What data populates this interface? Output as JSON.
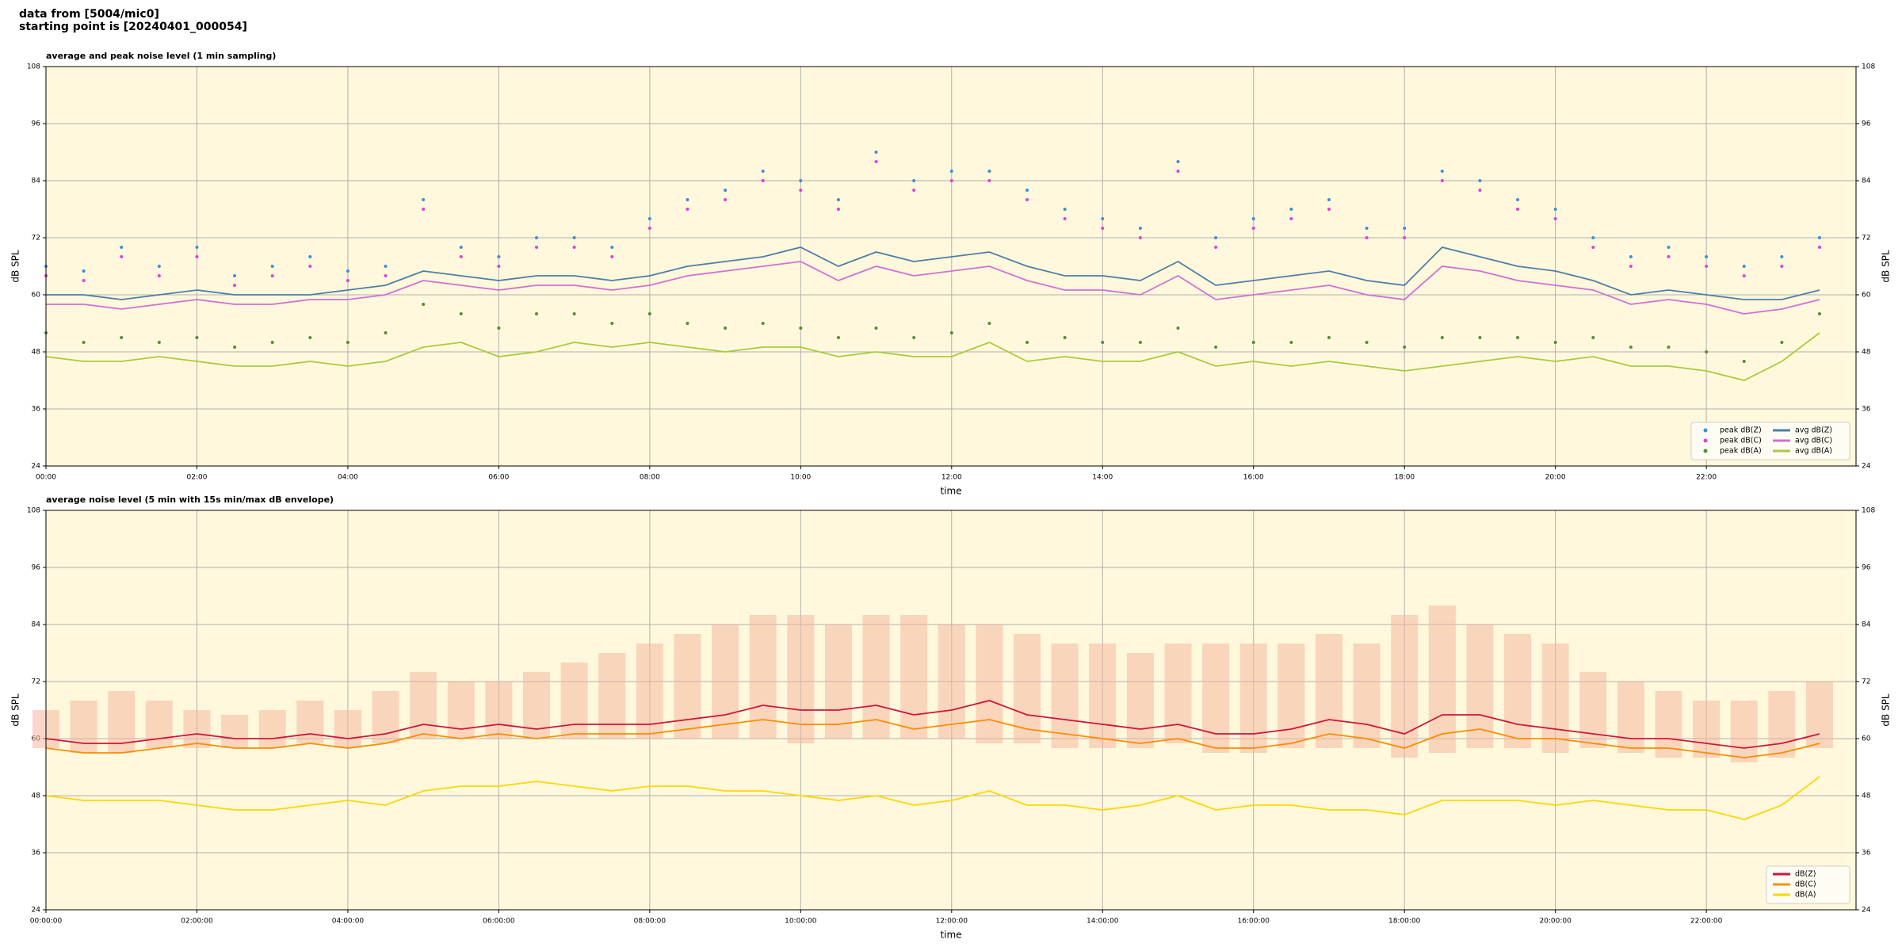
{
  "page": {
    "header": [
      "data from [5004/mic0]",
      "starting point is [20240401_000054]"
    ]
  },
  "chart_data": [
    {
      "type": "line",
      "title": "average and peak noise level (1 min sampling)",
      "xlabel": "time",
      "ylabel": "dB SPL",
      "x": [
        "00:00",
        "00:30",
        "01:00",
        "01:30",
        "02:00",
        "02:30",
        "03:00",
        "03:30",
        "04:00",
        "04:30",
        "05:00",
        "05:30",
        "06:00",
        "06:30",
        "07:00",
        "07:30",
        "08:00",
        "08:30",
        "09:00",
        "09:30",
        "10:00",
        "10:30",
        "11:00",
        "11:30",
        "12:00",
        "12:30",
        "13:00",
        "13:30",
        "14:00",
        "14:30",
        "15:00",
        "15:30",
        "16:00",
        "16:30",
        "17:00",
        "17:30",
        "18:00",
        "18:30",
        "19:00",
        "19:30",
        "20:00",
        "20:30",
        "21:00",
        "21:30",
        "22:00",
        "22:30",
        "23:00",
        "23:30"
      ],
      "xlim": [
        "00:00",
        "23:59"
      ],
      "xticks": [
        "00:00",
        "02:00",
        "04:00",
        "06:00",
        "08:00",
        "10:00",
        "12:00",
        "14:00",
        "16:00",
        "18:00",
        "20:00",
        "22:00"
      ],
      "ylim": [
        24,
        108
      ],
      "yticks": [
        24,
        36,
        48,
        60,
        72,
        84,
        96,
        108
      ],
      "grid": true,
      "legend": "lower right",
      "series": [
        {
          "name": "peak dB(Z)",
          "type": "scatter",
          "color": "#3b8fd6",
          "values": [
            66,
            65,
            70,
            66,
            70,
            64,
            66,
            68,
            65,
            66,
            80,
            70,
            68,
            72,
            72,
            70,
            76,
            80,
            82,
            86,
            84,
            80,
            90,
            84,
            86,
            86,
            82,
            78,
            76,
            74,
            88,
            72,
            76,
            78,
            80,
            74,
            74,
            86,
            84,
            80,
            78,
            72,
            68,
            70,
            68,
            66,
            68,
            72
          ]
        },
        {
          "name": "peak dB(C)",
          "type": "scatter",
          "color": "#e040d8",
          "values": [
            64,
            63,
            68,
            64,
            68,
            62,
            64,
            66,
            63,
            64,
            78,
            68,
            66,
            70,
            70,
            68,
            74,
            78,
            80,
            84,
            82,
            78,
            88,
            82,
            84,
            84,
            80,
            76,
            74,
            72,
            86,
            70,
            74,
            76,
            78,
            72,
            72,
            84,
            82,
            78,
            76,
            70,
            66,
            68,
            66,
            64,
            66,
            70
          ]
        },
        {
          "name": "peak dB(A)",
          "type": "scatter",
          "color": "#4f8f3a",
          "values": [
            52,
            50,
            51,
            50,
            51,
            49,
            50,
            51,
            50,
            52,
            58,
            56,
            53,
            56,
            56,
            54,
            56,
            54,
            53,
            54,
            53,
            51,
            53,
            51,
            52,
            54,
            50,
            51,
            50,
            50,
            53,
            49,
            50,
            50,
            51,
            50,
            49,
            51,
            51,
            51,
            50,
            51,
            49,
            49,
            48,
            46,
            50,
            56
          ]
        },
        {
          "name": "avg dB(Z)",
          "type": "line",
          "color": "#4d7ea8",
          "values": [
            60,
            60,
            59,
            60,
            61,
            60,
            60,
            60,
            61,
            62,
            65,
            64,
            63,
            64,
            64,
            63,
            64,
            66,
            67,
            68,
            70,
            66,
            69,
            67,
            68,
            69,
            66,
            64,
            64,
            63,
            67,
            62,
            63,
            64,
            65,
            63,
            62,
            70,
            68,
            66,
            65,
            63,
            60,
            61,
            60,
            59,
            59,
            61
          ]
        },
        {
          "name": "avg dB(C)",
          "type": "line",
          "color": "#d070d6",
          "values": [
            58,
            58,
            57,
            58,
            59,
            58,
            58,
            59,
            59,
            60,
            63,
            62,
            61,
            62,
            62,
            61,
            62,
            64,
            65,
            66,
            67,
            63,
            66,
            64,
            65,
            66,
            63,
            61,
            61,
            60,
            64,
            59,
            60,
            61,
            62,
            60,
            59,
            66,
            65,
            63,
            62,
            61,
            58,
            59,
            58,
            56,
            57,
            59
          ]
        },
        {
          "name": "avg dB(A)",
          "type": "line",
          "color": "#a8cc3c",
          "values": [
            47,
            46,
            46,
            47,
            46,
            45,
            45,
            46,
            45,
            46,
            49,
            50,
            47,
            48,
            50,
            49,
            50,
            49,
            48,
            49,
            49,
            47,
            48,
            47,
            47,
            50,
            46,
            47,
            46,
            46,
            48,
            45,
            46,
            45,
            46,
            45,
            44,
            45,
            46,
            47,
            46,
            47,
            45,
            45,
            44,
            42,
            46,
            52
          ]
        }
      ]
    },
    {
      "type": "line",
      "title": "average noise level (5 min with 15s min/max dB envelope)",
      "xlabel": "time",
      "ylabel": "dB SPL",
      "x": [
        "00:00:00",
        "00:30:00",
        "01:00:00",
        "01:30:00",
        "02:00:00",
        "02:30:00",
        "03:00:00",
        "03:30:00",
        "04:00:00",
        "04:30:00",
        "05:00:00",
        "05:30:00",
        "06:00:00",
        "06:30:00",
        "07:00:00",
        "07:30:00",
        "08:00:00",
        "08:30:00",
        "09:00:00",
        "09:30:00",
        "10:00:00",
        "10:30:00",
        "11:00:00",
        "11:30:00",
        "12:00:00",
        "12:30:00",
        "13:00:00",
        "13:30:00",
        "14:00:00",
        "14:30:00",
        "15:00:00",
        "15:30:00",
        "16:00:00",
        "16:30:00",
        "17:00:00",
        "17:30:00",
        "18:00:00",
        "18:30:00",
        "19:00:00",
        "19:30:00",
        "20:00:00",
        "20:30:00",
        "21:00:00",
        "21:30:00",
        "22:00:00",
        "22:30:00",
        "23:00:00",
        "23:30:00"
      ],
      "xlim": [
        "00:00:00",
        "23:59:00"
      ],
      "xticks": [
        "00:00:00",
        "02:00:00",
        "04:00:00",
        "06:00:00",
        "08:00:00",
        "10:00:00",
        "12:00:00",
        "14:00:00",
        "16:00:00",
        "18:00:00",
        "20:00:00",
        "22:00:00"
      ],
      "ylim": [
        24,
        108
      ],
      "yticks": [
        24,
        36,
        48,
        60,
        72,
        84,
        96,
        108
      ],
      "grid": true,
      "legend": "lower right",
      "envelope": {
        "color": "#f4b8a0",
        "min": [
          58,
          57,
          57,
          58,
          58,
          58,
          58,
          59,
          58,
          59,
          60,
          60,
          60,
          60,
          60,
          60,
          60,
          60,
          60,
          60,
          59,
          60,
          60,
          60,
          60,
          59,
          59,
          58,
          58,
          58,
          59,
          57,
          57,
          58,
          58,
          58,
          56,
          57,
          58,
          58,
          57,
          58,
          57,
          56,
          56,
          55,
          56,
          58
        ],
        "max": [
          66,
          68,
          70,
          68,
          66,
          65,
          66,
          68,
          66,
          70,
          74,
          72,
          72,
          74,
          76,
          78,
          80,
          82,
          84,
          86,
          86,
          84,
          86,
          86,
          84,
          84,
          82,
          80,
          80,
          78,
          80,
          80,
          80,
          80,
          82,
          80,
          86,
          88,
          84,
          82,
          80,
          74,
          72,
          70,
          68,
          68,
          70,
          72
        ]
      },
      "series": [
        {
          "name": "dB(Z)",
          "type": "line",
          "color": "#d0143c",
          "values": [
            60,
            59,
            59,
            60,
            61,
            60,
            60,
            61,
            60,
            61,
            63,
            62,
            63,
            62,
            63,
            63,
            63,
            64,
            65,
            67,
            66,
            66,
            67,
            65,
            66,
            68,
            65,
            64,
            63,
            62,
            63,
            61,
            61,
            62,
            64,
            63,
            61,
            65,
            65,
            63,
            62,
            61,
            60,
            60,
            59,
            58,
            59,
            61
          ]
        },
        {
          "name": "dB(C)",
          "type": "line",
          "color": "#ff8c00",
          "values": [
            58,
            57,
            57,
            58,
            59,
            58,
            58,
            59,
            58,
            59,
            61,
            60,
            61,
            60,
            61,
            61,
            61,
            62,
            63,
            64,
            63,
            63,
            64,
            62,
            63,
            64,
            62,
            61,
            60,
            59,
            60,
            58,
            58,
            59,
            61,
            60,
            58,
            61,
            62,
            60,
            60,
            59,
            58,
            58,
            57,
            56,
            57,
            59
          ]
        },
        {
          "name": "dB(A)",
          "type": "line",
          "color": "#ffd700",
          "values": [
            48,
            47,
            47,
            47,
            46,
            45,
            45,
            46,
            47,
            46,
            49,
            50,
            50,
            51,
            50,
            49,
            50,
            50,
            49,
            49,
            48,
            47,
            48,
            46,
            47,
            49,
            46,
            46,
            45,
            46,
            48,
            45,
            46,
            46,
            45,
            45,
            44,
            47,
            47,
            47,
            46,
            47,
            46,
            45,
            45,
            43,
            46,
            52
          ]
        }
      ]
    }
  ]
}
